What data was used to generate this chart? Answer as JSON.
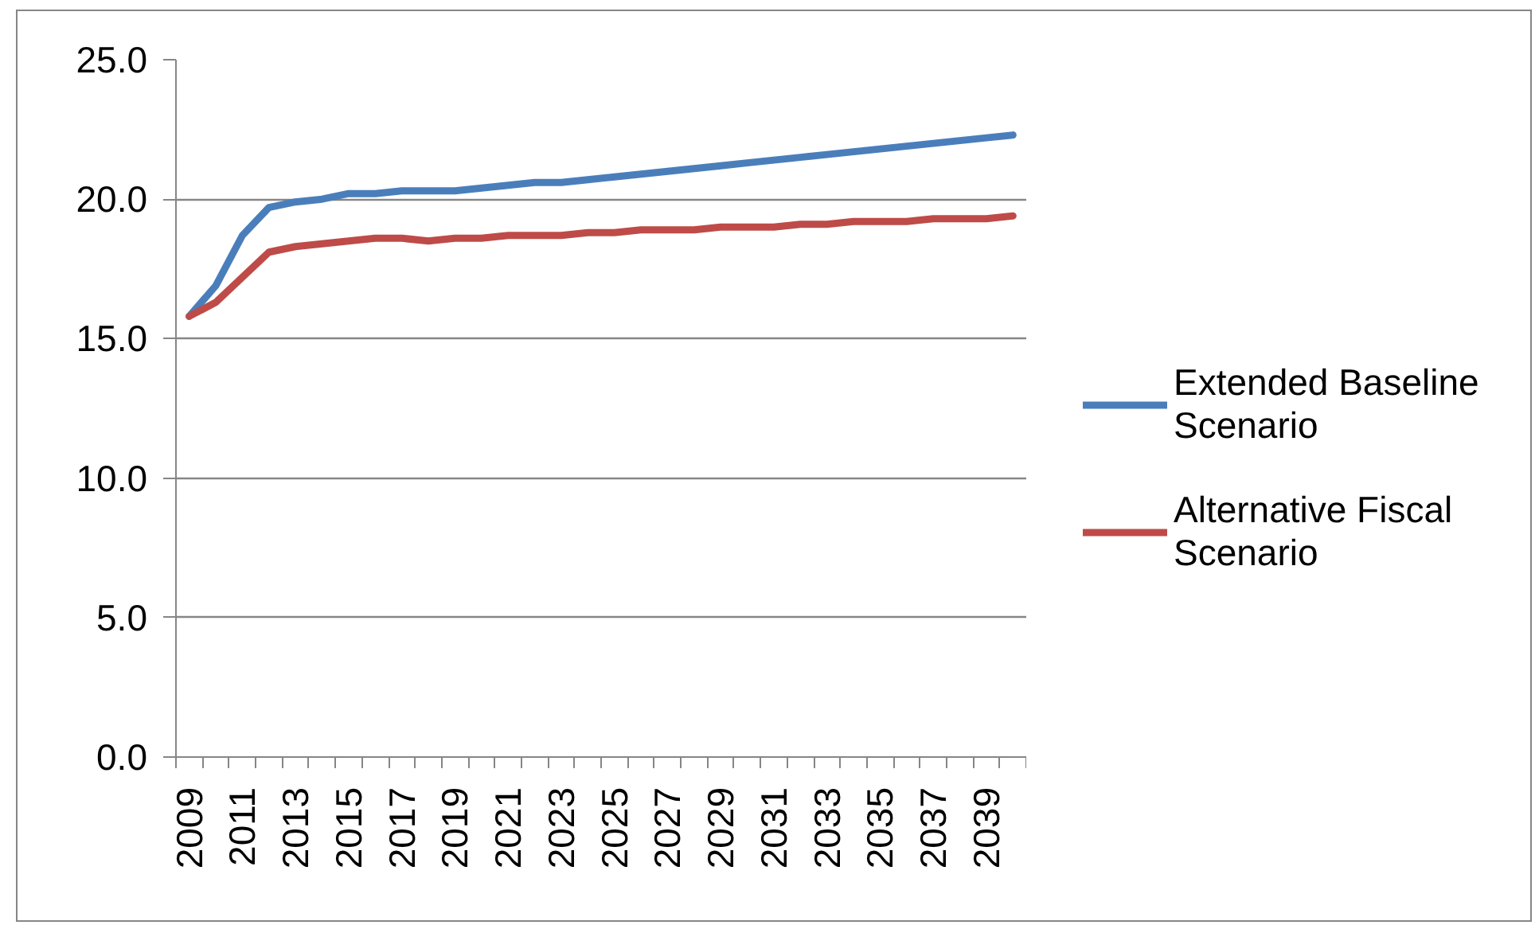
{
  "chart_data": {
    "type": "line",
    "categories": [
      "2009",
      null,
      "2011",
      null,
      "2013",
      null,
      "2015",
      null,
      "2017",
      null,
      "2019",
      null,
      "2021",
      null,
      "2023",
      null,
      "2025",
      null,
      "2027",
      null,
      "2029",
      null,
      "2031",
      null,
      "2033",
      null,
      "2035",
      null,
      "2037",
      null,
      "2039",
      null
    ],
    "series": [
      {
        "name": "Extended Baseline Scenario",
        "color": "#4a7ebb",
        "values": [
          15.8,
          16.9,
          18.7,
          19.7,
          19.9,
          20.0,
          20.2,
          20.2,
          20.3,
          20.3,
          20.3,
          20.4,
          20.5,
          20.6,
          20.6,
          20.7,
          20.8,
          20.9,
          21.0,
          21.1,
          21.2,
          21.3,
          21.4,
          21.5,
          21.6,
          21.7,
          21.8,
          21.9,
          22.0,
          22.1,
          22.2,
          22.3
        ]
      },
      {
        "name": "Alternative Fiscal Scenario",
        "color": "#be4b48",
        "values": [
          15.8,
          16.3,
          17.2,
          18.1,
          18.3,
          18.4,
          18.5,
          18.6,
          18.6,
          18.5,
          18.6,
          18.6,
          18.7,
          18.7,
          18.7,
          18.8,
          18.8,
          18.9,
          18.9,
          18.9,
          19.0,
          19.0,
          19.0,
          19.1,
          19.1,
          19.2,
          19.2,
          19.2,
          19.3,
          19.3,
          19.3,
          19.4
        ]
      }
    ],
    "ylim": [
      0,
      25
    ],
    "yticks": [
      {
        "value": 0,
        "label": "0.0"
      },
      {
        "value": 5,
        "label": "5.0"
      },
      {
        "value": 10,
        "label": "10.0"
      },
      {
        "value": 15,
        "label": "15.0"
      },
      {
        "value": 20,
        "label": "20.0"
      },
      {
        "value": 25,
        "label": "25.0"
      }
    ],
    "grid": "y",
    "legend": "right",
    "line_style": "solid"
  }
}
